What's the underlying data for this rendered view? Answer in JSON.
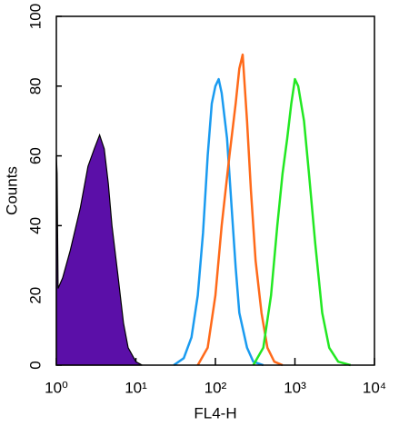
{
  "chart_data": {
    "type": "line",
    "x_label": "FL4-H",
    "y_label": "Counts",
    "xscale": "log",
    "xlim": [
      1,
      10000
    ],
    "ylim": [
      0,
      100
    ],
    "xticks": [
      {
        "value": 1,
        "label": "10⁰"
      },
      {
        "value": 10,
        "label": "10¹"
      },
      {
        "value": 100,
        "label": "10²"
      },
      {
        "value": 1000,
        "label": "10³"
      },
      {
        "value": 10000,
        "label": "10⁴"
      }
    ],
    "yticks": [
      0,
      20,
      40,
      60,
      80,
      100
    ],
    "series": [
      {
        "color": "#5b0fa8",
        "fill": true,
        "x": [
          1,
          1.02,
          1.05,
          1.2,
          1.5,
          2,
          2.5,
          3,
          3.5,
          4,
          4.5,
          5,
          6,
          7,
          8,
          10,
          12
        ],
        "values": [
          60,
          55,
          22,
          25,
          33,
          45,
          57,
          62,
          66,
          62,
          52,
          40,
          25,
          12,
          5,
          1,
          0
        ]
      },
      {
        "color": "#1a9bf0",
        "fill": false,
        "x": [
          30,
          40,
          50,
          60,
          70,
          80,
          90,
          100,
          110,
          120,
          140,
          160,
          180,
          200,
          250,
          300,
          400
        ],
        "values": [
          0,
          2,
          8,
          20,
          38,
          60,
          75,
          80,
          82,
          78,
          65,
          45,
          28,
          15,
          5,
          1,
          0
        ]
      },
      {
        "color": "#ff6a1a",
        "fill": false,
        "x": [
          60,
          80,
          100,
          120,
          150,
          180,
          200,
          220,
          250,
          280,
          320,
          380,
          450,
          550,
          700
        ],
        "values": [
          0,
          5,
          20,
          40,
          60,
          75,
          85,
          89,
          70,
          50,
          30,
          15,
          5,
          1,
          0
        ]
      },
      {
        "color": "#22e822",
        "fill": false,
        "x": [
          300,
          400,
          500,
          600,
          700,
          800,
          900,
          1000,
          1100,
          1300,
          1500,
          1800,
          2200,
          2700,
          3500,
          5000
        ],
        "values": [
          0,
          5,
          20,
          40,
          55,
          65,
          75,
          82,
          80,
          70,
          55,
          35,
          15,
          5,
          1,
          0
        ]
      }
    ]
  }
}
